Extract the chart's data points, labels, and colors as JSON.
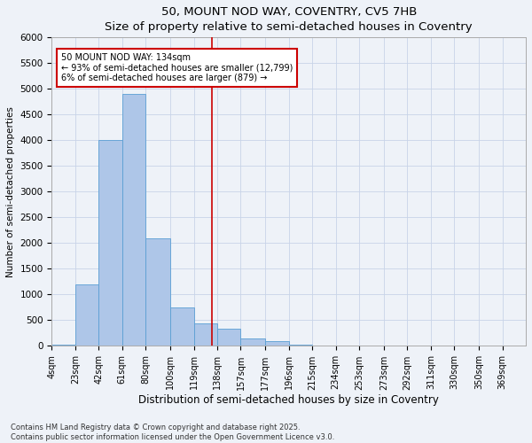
{
  "title_line1": "50, MOUNT NOD WAY, COVENTRY, CV5 7HB",
  "title_line2": "Size of property relative to semi-detached houses in Coventry",
  "xlabel": "Distribution of semi-detached houses by size in Coventry",
  "ylabel": "Number of semi-detached properties",
  "annotation_line1": "50 MOUNT NOD WAY: 134sqm",
  "annotation_line2": "← 93% of semi-detached houses are smaller (12,799)",
  "annotation_line3": "6% of semi-detached houses are larger (879) →",
  "property_value": 134,
  "bin_edges": [
    4,
    23,
    42,
    61,
    80,
    100,
    119,
    138,
    157,
    177,
    196,
    215,
    234,
    253,
    273,
    292,
    311,
    330,
    350,
    369,
    388
  ],
  "bar_heights": [
    30,
    1200,
    4000,
    4900,
    2100,
    750,
    430,
    340,
    150,
    100,
    30,
    0,
    0,
    0,
    0,
    0,
    0,
    0,
    0,
    0
  ],
  "bar_color": "#aec6e8",
  "bar_edge_color": "#5a9fd4",
  "red_line_color": "#cc0000",
  "annotation_box_color": "#cc0000",
  "grid_color": "#c8d4e8",
  "bg_color": "#eef2f8",
  "ylim": [
    0,
    6000
  ],
  "yticks": [
    0,
    500,
    1000,
    1500,
    2000,
    2500,
    3000,
    3500,
    4000,
    4500,
    5000,
    5500,
    6000
  ],
  "footnote1": "Contains HM Land Registry data © Crown copyright and database right 2025.",
  "footnote2": "Contains public sector information licensed under the Open Government Licence v3.0."
}
